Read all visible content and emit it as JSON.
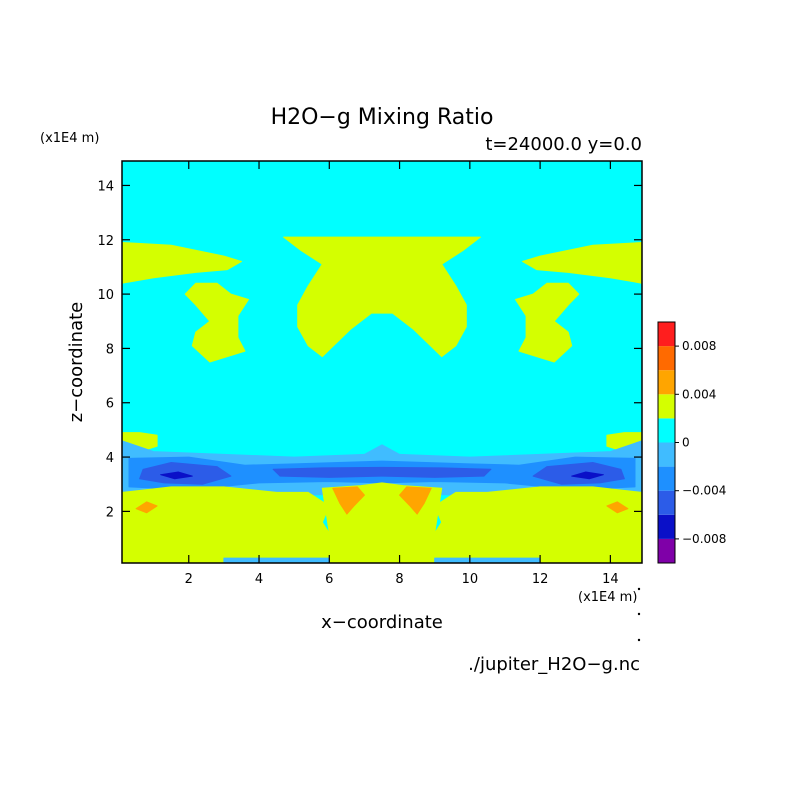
{
  "chart_data": {
    "type": "heatmap",
    "title": "H2O−g Mixing Ratio",
    "subtitle": "t=24000.0 y=0.0",
    "xlabel": "x−coordinate",
    "ylabel": "z−coordinate",
    "x_unit": "(x1E4 m)",
    "y_unit": "(x1E4 m)",
    "source_file": "./jupiter_H2O−g.nc",
    "xlim": [
      0.1,
      14.9
    ],
    "ylim": [
      0.1,
      14.9
    ],
    "x_ticks": [
      2,
      4,
      6,
      8,
      10,
      12,
      14
    ],
    "y_ticks": [
      2,
      4,
      6,
      8,
      10,
      12,
      14
    ],
    "colorbar": {
      "levels": [
        -0.01,
        -0.008,
        -0.006,
        -0.004,
        -0.002,
        0.0,
        0.002,
        0.004,
        0.006,
        0.008,
        0.01
      ],
      "colors": [
        "#7f00a8",
        "#0a10c8",
        "#2c5ce8",
        "#1e90ff",
        "#40bcff",
        "#00ffff",
        "#d4ff00",
        "#ffa500",
        "#ff6a00",
        "#ff1e1e",
        "#ffaaaa"
      ],
      "tick_values": [
        0.008,
        0.004,
        0,
        -0.004,
        -0.008
      ],
      "tick_labels": [
        "0.008",
        "0.004",
        "0",
        "−0.004",
        "−0.008"
      ]
    },
    "background_level": 0,
    "regions": [
      {
        "name": "upper-band-left",
        "level": 1,
        "points": [
          [
            0.1,
            11.9
          ],
          [
            1.5,
            11.8
          ],
          [
            3.0,
            11.4
          ],
          [
            3.5,
            11.2
          ],
          [
            3.1,
            10.9
          ],
          [
            2.2,
            10.8
          ],
          [
            1.0,
            10.6
          ],
          [
            0.1,
            10.4
          ]
        ]
      },
      {
        "name": "upper-band-right",
        "level": 1,
        "points": [
          [
            14.9,
            11.9
          ],
          [
            13.5,
            11.8
          ],
          [
            12.0,
            11.4
          ],
          [
            11.5,
            11.2
          ],
          [
            11.9,
            10.9
          ],
          [
            12.8,
            10.8
          ],
          [
            14.0,
            10.6
          ],
          [
            14.9,
            10.4
          ]
        ]
      },
      {
        "name": "upper-center-blob",
        "level": 1,
        "points": [
          [
            4.7,
            12.1
          ],
          [
            10.3,
            12.1
          ],
          [
            9.8,
            11.6
          ],
          [
            9.2,
            11.1
          ],
          [
            9.6,
            10.3
          ],
          [
            9.9,
            9.6
          ],
          [
            9.9,
            8.8
          ],
          [
            9.6,
            8.1
          ],
          [
            9.2,
            7.7
          ],
          [
            8.8,
            8.2
          ],
          [
            8.4,
            8.7
          ],
          [
            7.8,
            9.3
          ],
          [
            7.2,
            9.3
          ],
          [
            6.6,
            8.7
          ],
          [
            6.2,
            8.2
          ],
          [
            5.8,
            7.7
          ],
          [
            5.4,
            8.1
          ],
          [
            5.1,
            8.8
          ],
          [
            5.1,
            9.6
          ],
          [
            5.4,
            10.3
          ],
          [
            5.8,
            11.1
          ],
          [
            5.2,
            11.6
          ]
        ]
      },
      {
        "name": "upper-left-blob",
        "level": 1,
        "points": [
          [
            2.2,
            10.4
          ],
          [
            2.8,
            10.4
          ],
          [
            3.2,
            10.0
          ],
          [
            3.7,
            9.8
          ],
          [
            3.4,
            9.2
          ],
          [
            3.4,
            8.4
          ],
          [
            3.6,
            7.9
          ],
          [
            2.6,
            7.5
          ],
          [
            2.1,
            8.1
          ],
          [
            2.2,
            8.6
          ],
          [
            2.6,
            9.0
          ],
          [
            2.2,
            9.6
          ],
          [
            1.9,
            10.0
          ]
        ]
      },
      {
        "name": "upper-right-blob",
        "level": 1,
        "points": [
          [
            12.8,
            10.4
          ],
          [
            12.2,
            10.4
          ],
          [
            11.8,
            10.0
          ],
          [
            11.3,
            9.8
          ],
          [
            11.6,
            9.2
          ],
          [
            11.6,
            8.4
          ],
          [
            11.4,
            7.9
          ],
          [
            12.4,
            7.5
          ],
          [
            12.9,
            8.1
          ],
          [
            12.8,
            8.6
          ],
          [
            12.4,
            9.0
          ],
          [
            12.8,
            9.6
          ],
          [
            13.1,
            10.0
          ]
        ]
      },
      {
        "name": "band-fringe-left",
        "level": 1,
        "points": [
          [
            0.1,
            4.9
          ],
          [
            0.6,
            4.9
          ],
          [
            1.1,
            4.8
          ],
          [
            1.1,
            4.4
          ],
          [
            0.6,
            4.2
          ],
          [
            0.1,
            4.2
          ]
        ]
      },
      {
        "name": "band-fringe-right",
        "level": 1,
        "points": [
          [
            14.9,
            4.9
          ],
          [
            14.4,
            4.9
          ],
          [
            13.9,
            4.8
          ],
          [
            13.9,
            4.4
          ],
          [
            14.4,
            4.2
          ],
          [
            14.9,
            4.2
          ]
        ]
      },
      {
        "name": "dry-band-outer",
        "level": -1,
        "points": [
          [
            0.1,
            4.6
          ],
          [
            1.0,
            4.2
          ],
          [
            3.0,
            4.1
          ],
          [
            5.0,
            4.0
          ],
          [
            7.0,
            4.1
          ],
          [
            7.5,
            4.45
          ],
          [
            8.0,
            4.1
          ],
          [
            10.0,
            4.0
          ],
          [
            12.0,
            4.1
          ],
          [
            14.0,
            4.2
          ],
          [
            14.9,
            4.6
          ],
          [
            14.9,
            2.6
          ],
          [
            12.5,
            2.5
          ],
          [
            10.0,
            2.6
          ],
          [
            7.5,
            2.65
          ],
          [
            5.0,
            2.6
          ],
          [
            2.5,
            2.5
          ],
          [
            0.1,
            2.6
          ]
        ]
      },
      {
        "name": "dry-band-mid",
        "level": -2,
        "points": [
          [
            0.3,
            3.95
          ],
          [
            2.0,
            4.0
          ],
          [
            3.6,
            3.7
          ],
          [
            5.0,
            3.75
          ],
          [
            7.5,
            3.85
          ],
          [
            10.0,
            3.75
          ],
          [
            11.4,
            3.7
          ],
          [
            13.0,
            4.0
          ],
          [
            14.7,
            3.95
          ],
          [
            14.7,
            2.9
          ],
          [
            13.0,
            2.8
          ],
          [
            11.0,
            3.05
          ],
          [
            9.0,
            3.1
          ],
          [
            7.5,
            3.05
          ],
          [
            6.0,
            3.1
          ],
          [
            4.0,
            3.05
          ],
          [
            2.0,
            2.8
          ],
          [
            0.3,
            2.9
          ]
        ]
      },
      {
        "name": "dry-band-core-left",
        "level": -3,
        "points": [
          [
            0.7,
            3.55
          ],
          [
            1.5,
            3.8
          ],
          [
            2.8,
            3.65
          ],
          [
            3.2,
            3.3
          ],
          [
            2.4,
            3.0
          ],
          [
            1.3,
            3.05
          ],
          [
            0.6,
            3.2
          ]
        ]
      },
      {
        "name": "dry-band-core-right",
        "level": -3,
        "points": [
          [
            14.3,
            3.55
          ],
          [
            13.5,
            3.8
          ],
          [
            12.2,
            3.65
          ],
          [
            11.8,
            3.3
          ],
          [
            12.6,
            3.0
          ],
          [
            13.7,
            3.05
          ],
          [
            14.4,
            3.2
          ]
        ]
      },
      {
        "name": "dry-band-core-center",
        "level": -3,
        "points": [
          [
            4.4,
            3.55
          ],
          [
            5.8,
            3.6
          ],
          [
            7.5,
            3.62
          ],
          [
            9.2,
            3.6
          ],
          [
            10.6,
            3.55
          ],
          [
            10.4,
            3.3
          ],
          [
            9.0,
            3.25
          ],
          [
            7.5,
            3.3
          ],
          [
            6.0,
            3.25
          ],
          [
            4.6,
            3.3
          ]
        ]
      },
      {
        "name": "dry-band-minimum-left",
        "level": -4,
        "points": [
          [
            1.2,
            3.35
          ],
          [
            1.7,
            3.45
          ],
          [
            2.1,
            3.3
          ],
          [
            1.6,
            3.2
          ]
        ]
      },
      {
        "name": "dry-band-minimum-right",
        "level": -4,
        "points": [
          [
            13.8,
            3.35
          ],
          [
            13.3,
            3.45
          ],
          [
            12.9,
            3.3
          ],
          [
            13.4,
            3.2
          ]
        ]
      },
      {
        "name": "lower-moist-left",
        "level": 1,
        "points": [
          [
            0.1,
            2.7
          ],
          [
            1.5,
            2.9
          ],
          [
            3.0,
            2.9
          ],
          [
            4.5,
            2.7
          ],
          [
            5.4,
            2.7
          ],
          [
            6.0,
            2.2
          ],
          [
            5.8,
            1.6
          ],
          [
            4.8,
            1.7
          ],
          [
            3.8,
            1.4
          ],
          [
            3.2,
            1.0
          ],
          [
            2.0,
            1.1
          ],
          [
            0.8,
            1.6
          ],
          [
            0.1,
            1.9
          ]
        ]
      },
      {
        "name": "lower-moist-right",
        "level": 1,
        "points": [
          [
            14.9,
            2.7
          ],
          [
            13.5,
            2.9
          ],
          [
            12.0,
            2.9
          ],
          [
            10.5,
            2.7
          ],
          [
            9.6,
            2.7
          ],
          [
            9.0,
            2.2
          ],
          [
            9.2,
            1.6
          ],
          [
            10.2,
            1.7
          ],
          [
            11.2,
            1.4
          ],
          [
            11.8,
            1.0
          ],
          [
            13.0,
            1.1
          ],
          [
            14.2,
            1.6
          ],
          [
            14.9,
            1.9
          ]
        ]
      },
      {
        "name": "lower-moist-center",
        "level": 1,
        "points": [
          [
            5.8,
            2.85
          ],
          [
            6.9,
            2.95
          ],
          [
            7.5,
            3.05
          ],
          [
            8.1,
            2.95
          ],
          [
            9.2,
            2.85
          ],
          [
            9.0,
            1.2
          ],
          [
            6.0,
            1.2
          ]
        ]
      },
      {
        "name": "lower-floor",
        "level": 1,
        "points": [
          [
            0.1,
            1.9
          ],
          [
            0.8,
            1.6
          ],
          [
            2.0,
            1.1
          ],
          [
            3.2,
            1.0
          ],
          [
            3.8,
            1.4
          ],
          [
            4.8,
            1.7
          ],
          [
            5.8,
            1.6
          ],
          [
            6.0,
            1.2
          ],
          [
            9.0,
            1.2
          ],
          [
            9.2,
            1.6
          ],
          [
            10.2,
            1.7
          ],
          [
            11.2,
            1.4
          ],
          [
            11.8,
            1.0
          ],
          [
            13.0,
            1.1
          ],
          [
            14.2,
            1.6
          ],
          [
            14.9,
            1.9
          ],
          [
            14.9,
            0.1
          ],
          [
            0.1,
            0.1
          ]
        ]
      },
      {
        "name": "orange-plume-left",
        "level": 2,
        "points": [
          [
            6.1,
            2.85
          ],
          [
            6.8,
            2.9
          ],
          [
            7.0,
            2.6
          ],
          [
            6.7,
            2.2
          ],
          [
            6.5,
            1.9
          ],
          [
            6.3,
            2.3
          ]
        ]
      },
      {
        "name": "orange-plume-right",
        "level": 2,
        "points": [
          [
            8.9,
            2.85
          ],
          [
            8.2,
            2.9
          ],
          [
            8.0,
            2.6
          ],
          [
            8.3,
            2.2
          ],
          [
            8.5,
            1.9
          ],
          [
            8.7,
            2.3
          ]
        ]
      },
      {
        "name": "orange-arc-left",
        "level": 2,
        "points": [
          [
            0.5,
            2.1
          ],
          [
            0.8,
            2.35
          ],
          [
            1.1,
            2.2
          ],
          [
            0.8,
            1.95
          ]
        ]
      },
      {
        "name": "orange-arc-right",
        "level": 2,
        "points": [
          [
            14.5,
            2.1
          ],
          [
            14.2,
            2.35
          ],
          [
            13.9,
            2.2
          ],
          [
            14.2,
            1.95
          ]
        ]
      },
      {
        "name": "floor-dry-strip",
        "level": -1,
        "points": [
          [
            3.0,
            0.28
          ],
          [
            6.0,
            0.28
          ],
          [
            6.0,
            0.12
          ],
          [
            3.0,
            0.12
          ]
        ]
      },
      {
        "name": "floor-dry-strip-2",
        "level": -1,
        "points": [
          [
            9.0,
            0.28
          ],
          [
            12.0,
            0.28
          ],
          [
            12.0,
            0.12
          ],
          [
            9.0,
            0.12
          ]
        ]
      }
    ]
  }
}
